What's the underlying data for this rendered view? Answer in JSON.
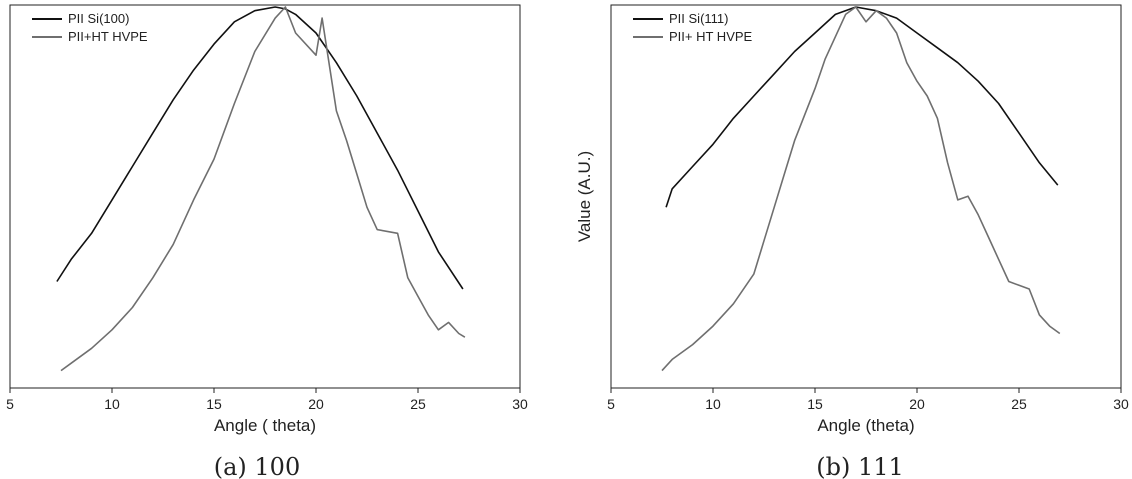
{
  "chart_data": [
    {
      "type": "line",
      "xlabel": "Angle ( theta)",
      "ylabel": "",
      "caption": "(a)  100",
      "xlim": [
        5,
        30
      ],
      "xticks": [
        5,
        10,
        15,
        20,
        25,
        30
      ],
      "ylim": [
        0,
        1
      ],
      "grid": false,
      "legend_position": "top-left",
      "series": [
        {
          "name": "PII Si(100)",
          "color": "#111111",
          "x": [
            7.3,
            8.0,
            9.0,
            10.0,
            11.0,
            12.0,
            13.0,
            14.0,
            15.0,
            16.0,
            17.0,
            18.0,
            18.5,
            19.0,
            20.0,
            21.0,
            22.0,
            23.0,
            24.0,
            25.0,
            26.0,
            27.2
          ],
          "y": [
            0.26,
            0.32,
            0.39,
            0.48,
            0.57,
            0.66,
            0.75,
            0.83,
            0.9,
            0.96,
            0.99,
            1.0,
            0.995,
            0.98,
            0.93,
            0.85,
            0.76,
            0.66,
            0.56,
            0.45,
            0.34,
            0.24
          ]
        },
        {
          "name": "PII+HT HVPE",
          "color": "#6f6f6f",
          "x": [
            7.5,
            8.0,
            9.0,
            10.0,
            11.0,
            12.0,
            13.0,
            14.0,
            15.0,
            16.0,
            17.0,
            18.0,
            18.5,
            19.0,
            20.0,
            20.3,
            21.0,
            21.5,
            22.0,
            22.5,
            23.0,
            24.0,
            24.5,
            25.0,
            25.5,
            26.0,
            26.5,
            27.0,
            27.3
          ],
          "y": [
            0.02,
            0.04,
            0.08,
            0.13,
            0.19,
            0.27,
            0.36,
            0.48,
            0.59,
            0.74,
            0.88,
            0.97,
            1.0,
            0.93,
            0.87,
            0.97,
            0.72,
            0.64,
            0.55,
            0.46,
            0.4,
            0.39,
            0.27,
            0.22,
            0.17,
            0.13,
            0.15,
            0.12,
            0.11
          ]
        }
      ]
    },
    {
      "type": "line",
      "xlabel": "Angle (theta)",
      "ylabel": "Value (A.U.)",
      "caption": "(b)  111",
      "xlim": [
        5,
        30
      ],
      "xticks": [
        5,
        10,
        15,
        20,
        25,
        30
      ],
      "ylim": [
        0,
        1
      ],
      "grid": false,
      "legend_position": "top-left",
      "series": [
        {
          "name": "PII Si(111)",
          "color": "#111111",
          "x": [
            7.7,
            8.0,
            9.0,
            10.0,
            11.0,
            12.0,
            13.0,
            14.0,
            15.0,
            16.0,
            17.0,
            18.0,
            19.0,
            20.0,
            21.0,
            22.0,
            23.0,
            24.0,
            25.0,
            26.0,
            26.9
          ],
          "y": [
            0.46,
            0.51,
            0.57,
            0.63,
            0.7,
            0.76,
            0.82,
            0.88,
            0.93,
            0.98,
            1.0,
            0.99,
            0.97,
            0.93,
            0.89,
            0.85,
            0.8,
            0.74,
            0.66,
            0.58,
            0.52
          ]
        },
        {
          "name": "PII+ HT HVPE",
          "color": "#6f6f6f",
          "x": [
            7.5,
            8.0,
            9.0,
            10.0,
            11.0,
            12.0,
            12.5,
            13.0,
            13.5,
            14.0,
            14.5,
            15.0,
            15.5,
            16.0,
            16.5,
            17.0,
            17.5,
            18.0,
            18.5,
            19.0,
            19.5,
            20.0,
            20.5,
            21.0,
            21.5,
            22.0,
            22.5,
            23.0,
            23.5,
            24.0,
            24.5,
            25.0,
            25.5,
            26.0,
            26.5,
            27.0
          ],
          "y": [
            0.02,
            0.05,
            0.09,
            0.14,
            0.2,
            0.28,
            0.37,
            0.46,
            0.55,
            0.64,
            0.71,
            0.78,
            0.86,
            0.92,
            0.98,
            1.0,
            0.96,
            0.99,
            0.97,
            0.93,
            0.85,
            0.8,
            0.76,
            0.7,
            0.58,
            0.48,
            0.49,
            0.44,
            0.38,
            0.32,
            0.26,
            0.25,
            0.24,
            0.17,
            0.14,
            0.12
          ]
        }
      ]
    }
  ]
}
